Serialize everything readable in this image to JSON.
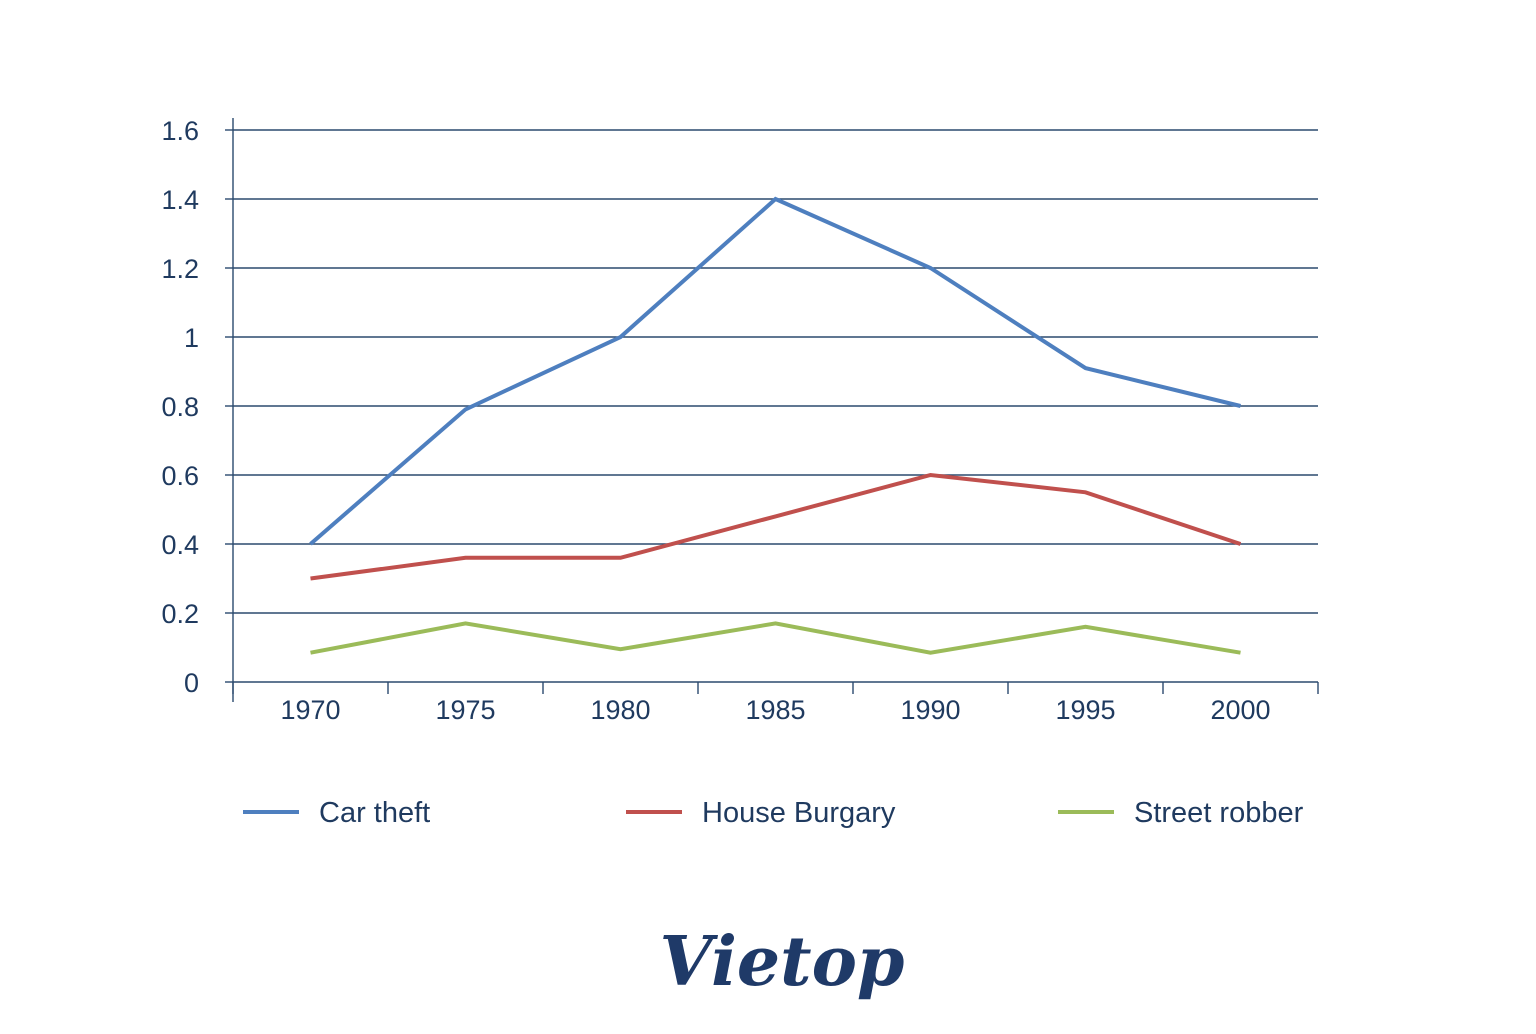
{
  "chart_data": {
    "type": "line",
    "title": "",
    "xlabel": "",
    "ylabel": "",
    "categories": [
      "1970",
      "1975",
      "1980",
      "1985",
      "1990",
      "1995",
      "2000"
    ],
    "y_ticks": [
      "0",
      "0.2",
      "0.4",
      "0.6",
      "0.8",
      "1",
      "1.2",
      "1.4",
      "1.6"
    ],
    "ylim": [
      0,
      1.6
    ],
    "grid": true,
    "legend_position": "bottom",
    "series": [
      {
        "name": "Car theft",
        "color": "#4e7fbf",
        "values": [
          0.4,
          0.79,
          1.0,
          1.4,
          1.2,
          0.91,
          0.8
        ]
      },
      {
        "name": "House Burgary",
        "color": "#c0504d",
        "values": [
          0.3,
          0.36,
          0.36,
          0.48,
          0.6,
          0.55,
          0.4
        ]
      },
      {
        "name": "Street robber",
        "color": "#9bbb59",
        "values": [
          0.085,
          0.17,
          0.095,
          0.17,
          0.085,
          0.16,
          0.085
        ]
      }
    ]
  },
  "logo": {
    "text": "Vietop",
    "color": "#1f3a68"
  }
}
